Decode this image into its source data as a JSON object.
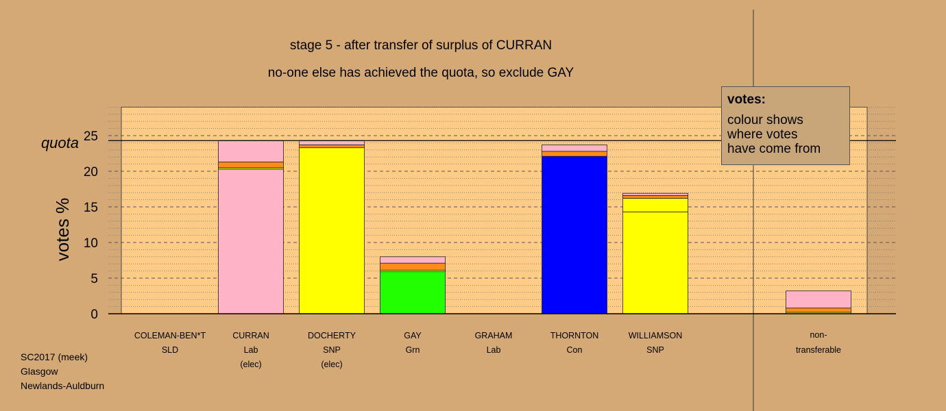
{
  "chart_data": {
    "type": "bar",
    "stacked": true,
    "title": "stage 5 - after transfer of surplus of CURRAN",
    "subtitle": "no-one else has achieved the quota, so exclude GAY",
    "ylabel": "votes %",
    "xlabel": "",
    "ylim": [
      0,
      29
    ],
    "yticks": [
      "0",
      "5",
      "10",
      "15",
      "20",
      "25"
    ],
    "quota": 24.3,
    "quota_label": "quota",
    "grid": true,
    "legend_placement": "top-right",
    "candidates": [
      {
        "name": "COLEMAN-BEN*T",
        "party": "SLD",
        "status": "",
        "segments": []
      },
      {
        "name": "CURRAN",
        "party": "Lab",
        "status": "(elec)",
        "segments": [
          {
            "value": 20.3,
            "color": "#ffb3c6"
          },
          {
            "value": 0.2,
            "color": "#ffff00"
          },
          {
            "value": 0.8,
            "color": "#ff8c1a"
          },
          {
            "value": 3.0,
            "color": "#ffb3c6"
          }
        ]
      },
      {
        "name": "DOCHERTY",
        "party": "SNP",
        "status": "(elec)",
        "segments": [
          {
            "value": 23.3,
            "color": "#ffff00"
          },
          {
            "value": 0.4,
            "color": "#ff8c1a"
          },
          {
            "value": 0.6,
            "color": "#ffb3c6"
          }
        ]
      },
      {
        "name": "GAY",
        "party": "Grn",
        "status": "",
        "segments": [
          {
            "value": 5.9,
            "color": "#22ff00"
          },
          {
            "value": 0.2,
            "color": "#ffff00"
          },
          {
            "value": 1.0,
            "color": "#ff8c1a"
          },
          {
            "value": 0.9,
            "color": "#ffb3c6"
          }
        ]
      },
      {
        "name": "GRAHAM",
        "party": "Lab",
        "status": "",
        "segments": []
      },
      {
        "name": "THORNTON",
        "party": "Con",
        "status": "",
        "segments": [
          {
            "value": 22.1,
            "color": "#0000ff"
          },
          {
            "value": 0.7,
            "color": "#ff8c1a"
          },
          {
            "value": 0.9,
            "color": "#ffb3c6"
          }
        ]
      },
      {
        "name": "WILLIAMSON",
        "party": "SNP",
        "status": "",
        "segments": [
          {
            "value": 14.3,
            "color": "#ffff00"
          },
          {
            "value": 1.9,
            "color": "#ffff00"
          },
          {
            "value": 0.4,
            "color": "#ff8c1a"
          },
          {
            "value": 0.3,
            "color": "#ffb3c6"
          }
        ]
      }
    ],
    "nontransferable": {
      "label_line1": "non-",
      "label_line2": "transferable",
      "segments": [
        {
          "value": 0.2,
          "color": "#ffff00"
        },
        {
          "value": 0.6,
          "color": "#ff8c1a"
        },
        {
          "value": 2.4,
          "color": "#ffb3c6"
        }
      ]
    },
    "legend": {
      "title": "votes:",
      "line1": "colour shows",
      "line2": "where votes",
      "line3": "have come from"
    }
  },
  "footer": {
    "line1": "SC2017 (meek)",
    "line2": "Glasgow",
    "line3": "Newlands-Auldburn"
  }
}
